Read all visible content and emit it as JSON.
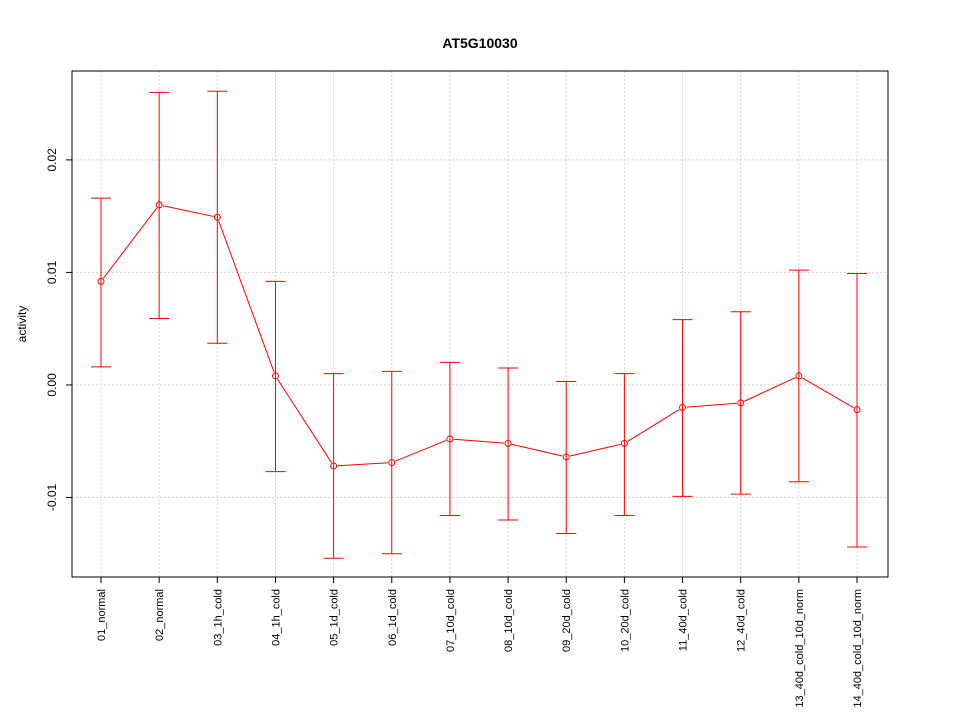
{
  "chart_data": {
    "type": "line",
    "title": "AT5G10030",
    "xlabel": "",
    "ylabel": "activity",
    "ylim": [
      -0.01707,
      0.0279
    ],
    "yticks": [
      -0.01,
      0.0,
      0.01,
      0.02
    ],
    "ytick_labels": [
      "-0.01",
      "0.00",
      "0.01",
      "0.02"
    ],
    "grid": true,
    "color": "#ff0000",
    "categories": [
      "01_normal",
      "02_normal",
      "03_1h_cold",
      "04_1h_cold",
      "05_1d_cold",
      "06_1d_cold",
      "07_10d_cold",
      "08_10d_cold",
      "09_20d_cold",
      "10_20d_cold",
      "11_40d_cold",
      "12_40d_cold",
      "13_40d_cold_10d_norm",
      "14_40d_cold_10d_norm"
    ],
    "values": [
      0.0092,
      0.016,
      0.0149,
      0.0008,
      -0.0072,
      -0.0069,
      -0.0048,
      -0.0052,
      -0.0064,
      -0.0052,
      -0.002,
      -0.0016,
      0.0008,
      -0.0022
    ],
    "upper": [
      0.0166,
      0.026,
      0.0261,
      0.0092,
      0.001,
      0.0012,
      0.002,
      0.0015,
      0.0003,
      0.001,
      0.0058,
      0.0065,
      0.0102,
      0.0099
    ],
    "lower": [
      0.0016,
      0.0059,
      0.0037,
      -0.0077,
      -0.0154,
      -0.015,
      -0.0116,
      -0.012,
      -0.0132,
      -0.0116,
      -0.0099,
      -0.0097,
      -0.0086,
      -0.0144
    ]
  }
}
